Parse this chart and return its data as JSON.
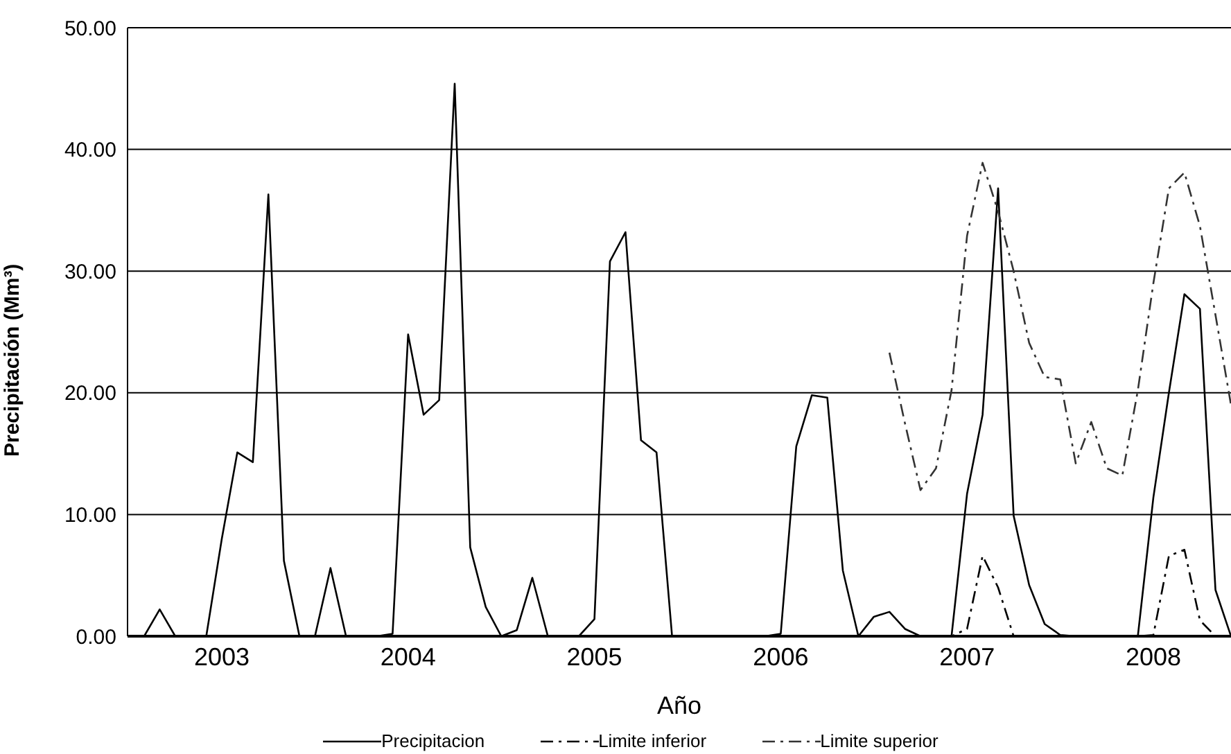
{
  "chart_data": {
    "type": "line",
    "xlabel": "Año",
    "ylabel": "Precipitación (Mm³)",
    "categories": [
      null,
      null,
      null,
      null,
      null,
      "2003",
      null,
      null,
      null,
      null,
      null,
      null,
      null,
      null,
      null,
      null,
      null,
      "2004",
      null,
      null,
      null,
      null,
      null,
      null,
      null,
      null,
      null,
      null,
      null,
      "2005",
      null,
      null,
      null,
      null,
      null,
      null,
      null,
      null,
      null,
      null,
      null,
      "2006",
      null,
      null,
      null,
      null,
      null,
      null,
      null,
      null,
      null,
      null,
      null,
      "2007",
      null,
      null,
      null,
      null,
      null,
      null,
      null,
      null,
      null,
      null,
      null,
      "2008",
      null,
      null,
      null,
      null,
      null
    ],
    "series": [
      {
        "name": "Precipitacion",
        "color": "#000000",
        "line_style": "solid",
        "values": [
          0,
          2.2,
          0,
          0,
          0,
          8,
          15.1,
          14.3,
          36.3,
          6.2,
          0,
          0,
          5.6,
          0,
          0,
          0,
          0.2,
          24.8,
          18.2,
          19.4,
          45.4,
          7.3,
          2.4,
          0,
          0.5,
          4.8,
          0,
          0,
          0,
          1.4,
          30.8,
          33.2,
          16.1,
          15.1,
          0,
          0,
          0,
          0,
          0,
          0,
          0,
          0.2,
          15.6,
          19.8,
          19.6,
          5.4,
          0,
          1.6,
          2,
          0.6,
          0,
          0,
          0,
          11.7,
          18.2,
          36.8,
          9.9,
          4.2,
          1,
          0.1,
          0,
          0,
          0,
          0,
          0,
          11.4,
          20,
          28.1,
          26.9,
          3.8,
          0
        ]
      },
      {
        "name": "Limite inferior",
        "color": "#000000",
        "line_style": "dashed",
        "values": [
          null,
          null,
          null,
          null,
          null,
          null,
          null,
          null,
          null,
          null,
          null,
          null,
          null,
          null,
          null,
          null,
          null,
          null,
          null,
          null,
          null,
          null,
          null,
          null,
          null,
          null,
          null,
          null,
          null,
          null,
          null,
          null,
          null,
          null,
          null,
          null,
          null,
          null,
          null,
          null,
          null,
          null,
          null,
          null,
          null,
          null,
          null,
          null,
          0,
          0,
          0,
          0,
          0,
          0.6,
          6.6,
          4,
          0,
          0,
          0,
          0,
          0,
          0,
          0,
          0,
          0,
          0.1,
          6.6,
          7.1,
          1.3,
          0,
          0
        ]
      },
      {
        "name": "Limite superior",
        "color": "#333333",
        "line_style": "dashed",
        "values": [
          null,
          null,
          null,
          null,
          null,
          null,
          null,
          null,
          null,
          null,
          null,
          null,
          null,
          null,
          null,
          null,
          null,
          null,
          null,
          null,
          null,
          null,
          null,
          null,
          null,
          null,
          null,
          null,
          null,
          null,
          null,
          null,
          null,
          null,
          null,
          null,
          null,
          null,
          null,
          null,
          null,
          null,
          null,
          null,
          null,
          null,
          null,
          null,
          23.3,
          17.5,
          12,
          13.8,
          20.2,
          32.9,
          38.9,
          34.9,
          30,
          24.1,
          21.3,
          21.1,
          14.2,
          17.6,
          13.8,
          13.2,
          20.2,
          29,
          36.8,
          38.1,
          33.7,
          26.4,
          19
        ]
      }
    ],
    "ylim": [
      0,
      50
    ],
    "yticks": [
      {
        "value": 0,
        "label": "0.00"
      },
      {
        "value": 10,
        "label": "10.00"
      },
      {
        "value": 20,
        "label": "20.00"
      },
      {
        "value": 30,
        "label": "30.00"
      },
      {
        "value": 40,
        "label": "40.00"
      },
      {
        "value": 50,
        "label": "50.00"
      }
    ],
    "grid": "y",
    "legend": "bottom",
    "marker": "none"
  }
}
